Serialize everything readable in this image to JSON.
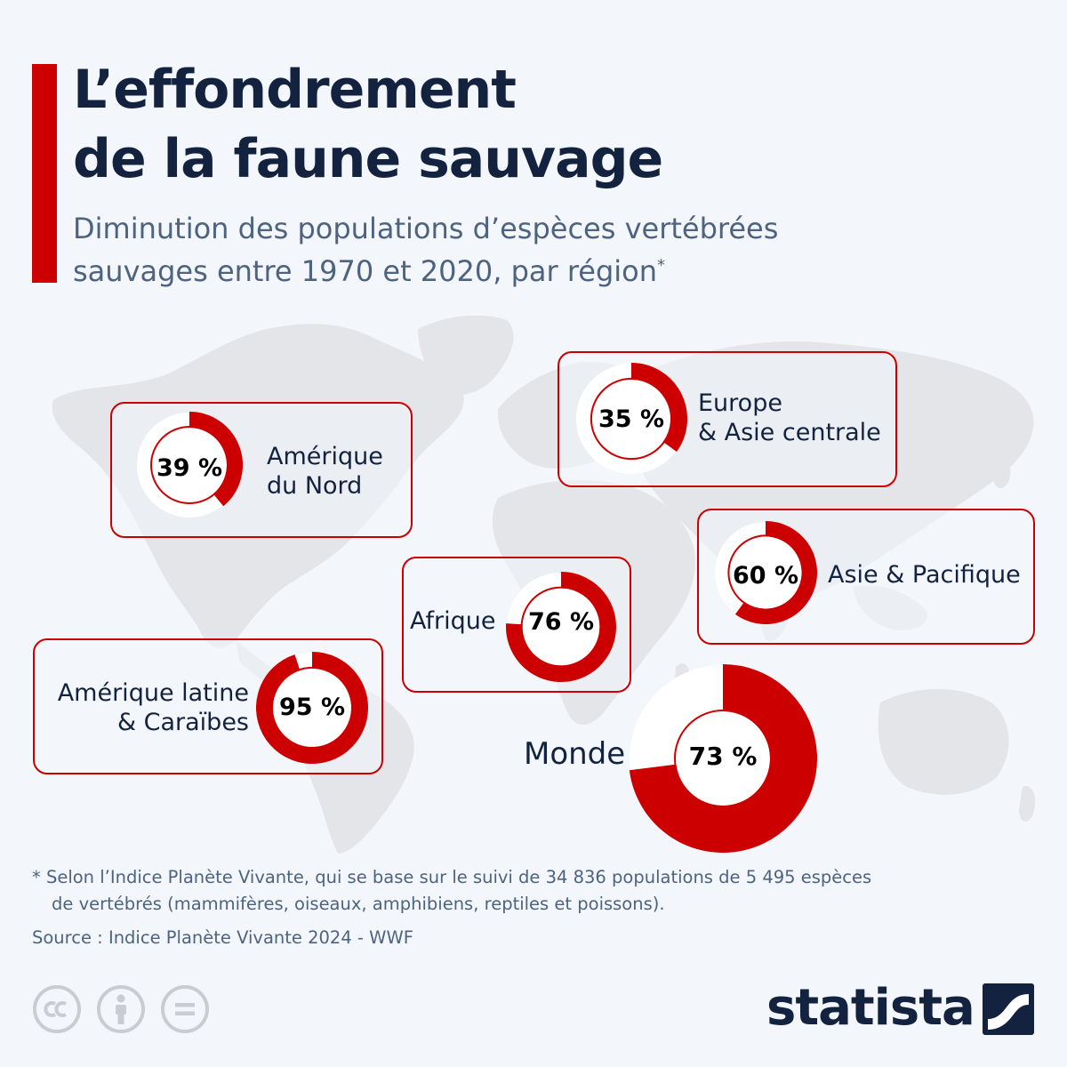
{
  "title_lines": [
    "L’effondrement",
    "de la faune sauvage"
  ],
  "subtitle_lines": [
    "Diminution des populations d’espèces vertébrées",
    "sauvages entre 1970 et 2020, par région"
  ],
  "subtitle_marker": "*",
  "chart_data": {
    "type": "donut",
    "title": "L’effondrement de la faune sauvage",
    "subtitle": "Diminution des populations d’espèces vertébrées sauvages entre 1970 et 2020, par région",
    "unit": "%",
    "categories": [
      "Amérique du Nord",
      "Europe & Asie centrale",
      "Asie & Pacifique",
      "Afrique",
      "Amérique latine & Caraïbes",
      "Monde"
    ],
    "values": [
      39,
      35,
      60,
      76,
      95,
      73
    ],
    "labels": [
      "39 %",
      "35 %",
      "60 %",
      "76 %",
      "95 %",
      "73 %"
    ],
    "colors": {
      "decline": "#cc0000",
      "remaining": "#ffffff"
    }
  },
  "regions": [
    {
      "id": "amerique-du-nord",
      "name_lines": [
        "Amérique",
        "du Nord"
      ]
    },
    {
      "id": "europe-asie-centrale",
      "name_lines": [
        "Europe",
        "& Asie centrale"
      ]
    },
    {
      "id": "asie-pacifique",
      "name_lines": [
        "Asie & Pacifique"
      ]
    },
    {
      "id": "afrique",
      "name_lines": [
        "Afrique"
      ]
    },
    {
      "id": "amerique-latine",
      "name_lines": [
        "Amérique latine",
        "& Caraïbes"
      ]
    },
    {
      "id": "monde",
      "name_lines": [
        "Monde"
      ]
    }
  ],
  "footnote_lines": [
    "* Selon l’Indice Planète Vivante, qui se base sur le suivi de 34 836 populations de 5 495 espèces",
    "de vertébrés (mammifères, oiseaux, amphibiens, reptiles et poissons)."
  ],
  "source": "Source : Indice Planète Vivante 2024 - WWF",
  "brand": "statista",
  "icons": [
    "cc-icon",
    "attribution-icon",
    "no-derivatives-icon",
    "statista-logo-icon",
    "world-map"
  ],
  "colors": {
    "accent": "#cc0000",
    "title": "#13233f",
    "subtitle": "#4d6380",
    "background": "#f3f6fa",
    "map": "#e3e5e8"
  }
}
